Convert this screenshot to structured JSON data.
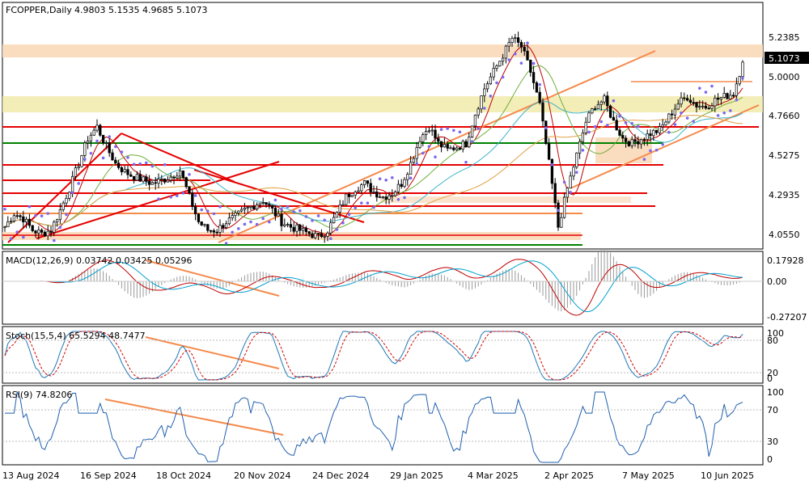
{
  "chart_data": {
    "type": "candlestick",
    "symbol_label": "FCOPPER,Daily",
    "ohlc_label": "4.9803 5.1535 4.9685 5.1073",
    "price_axis_labels": [
      "5.2385",
      "5.0000",
      "4.7660",
      "4.5275",
      "4.2935",
      "4.0550"
    ],
    "price_axis_values": [
      5.2385,
      5.0,
      4.766,
      4.5275,
      4.2935,
      4.055
    ],
    "last_price_label": "5.1073",
    "last_price": 5.1073,
    "x_axis_labels": [
      "13 Aug 2024",
      "16 Sep 2024",
      "18 Oct 2024",
      "20 Nov 2024",
      "24 Dec 2024",
      "29 Jan 2025",
      "4 Mar 2025",
      "2 Apr 2025",
      "7 May 2025",
      "10 Jun 2025"
    ],
    "price_close_series": [
      4.12,
      4.2,
      4.17,
      4.1,
      4.08,
      4.1,
      4.22,
      4.35,
      4.5,
      4.65,
      4.72,
      4.6,
      4.5,
      4.45,
      4.42,
      4.4,
      4.38,
      4.4,
      4.42,
      4.46,
      4.3,
      4.15,
      4.1,
      4.1,
      4.15,
      4.18,
      4.22,
      4.25,
      4.28,
      4.22,
      4.15,
      4.12,
      4.1,
      4.08,
      4.06,
      4.1,
      4.2,
      4.3,
      4.35,
      4.38,
      4.33,
      4.3,
      4.32,
      4.38,
      4.5,
      4.65,
      4.72,
      4.62,
      4.58,
      4.6,
      4.62,
      4.8,
      4.95,
      5.05,
      5.15,
      5.25,
      5.2,
      5.05,
      4.85,
      4.5,
      4.12,
      4.35,
      4.55,
      4.75,
      4.85,
      4.88,
      4.75,
      4.65,
      4.62,
      4.65,
      4.68,
      4.7,
      4.78,
      4.86,
      4.9,
      4.85,
      4.84,
      4.88,
      4.9,
      4.92,
      5.1073
    ],
    "macd": {
      "label": "MACD(12,26,9) 0.03742 0.03425 0.05296",
      "axis_labels": [
        "0.17928",
        "0.00",
        "-0.27207"
      ],
      "axis_values": [
        0.17928,
        0.0,
        -0.27207
      ]
    },
    "stoch": {
      "label": "Stoch(15,5,4) 65.5294 48.7477",
      "axis_labels": [
        "100",
        "80",
        "20",
        "0"
      ],
      "axis_values": [
        100,
        80,
        20,
        0
      ]
    },
    "rsi": {
      "label": "RSI(9) 74.8206",
      "axis_labels": [
        "100",
        "70",
        "30",
        "0"
      ],
      "axis_values": [
        100,
        70,
        30,
        0
      ]
    },
    "colors": {
      "up_candle": "#ffffff",
      "down_candle": "#000000",
      "sar_dots": "#7b68ee",
      "red_line": "#e60000",
      "orange_line": "#f58a4b",
      "green_line": "#008000",
      "macd_signal": "#c00000",
      "macd_main": "#00a0d0",
      "stoch_main": "#1f77b4",
      "stoch_signal": "#d00000",
      "rsi_line": "#1f5fae"
    }
  }
}
